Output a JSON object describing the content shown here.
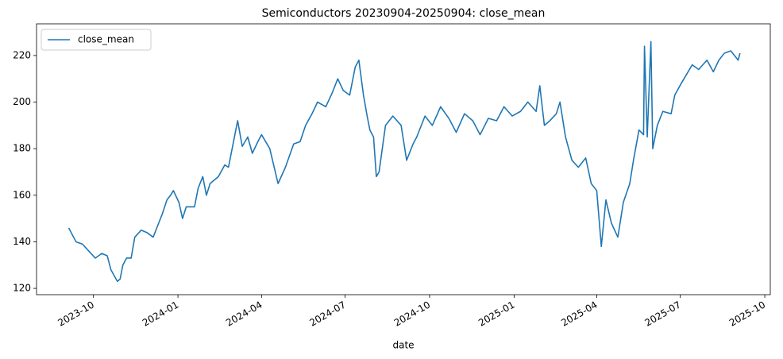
{
  "chart_data": {
    "type": "line",
    "title": "Semiconductors 20230904-20250904: close_mean",
    "xlabel": "date",
    "x": [
      19604,
      19612,
      19619,
      19626,
      19633,
      19640,
      19646,
      19650,
      19657,
      19660,
      19663,
      19667,
      19672,
      19676,
      19683,
      19689,
      19696,
      19702,
      19706,
      19711,
      19715,
      19718,
      19724,
      19728,
      19732,
      19741,
      19745,
      19750,
      19754,
      19758,
      19767,
      19774,
      19778,
      19784,
      19788,
      19793,
      19799,
      19804,
      19810,
      19814,
      19823,
      19832,
      19840,
      19849,
      19856,
      19862,
      19869,
      19875,
      19884,
      19891,
      19897,
      19903,
      19910,
      19916,
      19920,
      19925,
      19929,
      19932,
      19936,
      19939,
      19942,
      19949,
      19957,
      19966,
      19972,
      19979,
      19983,
      19992,
      20000,
      20009,
      20018,
      20026,
      20035,
      20044,
      20052,
      20061,
      20070,
      20078,
      20087,
      20096,
      20104,
      20113,
      20117,
      20122,
      20128,
      20135,
      20139,
      20145,
      20152,
      20159,
      20167,
      20173,
      20179,
      20184,
      20189,
      20195,
      20202,
      20208,
      20215,
      20219,
      20225,
      20230,
      20231,
      20234,
      20238,
      20240,
      20245,
      20251,
      20260,
      20264,
      20271,
      20277,
      20283,
      20290,
      20299,
      20306,
      20312,
      20318,
      20325,
      20333,
      20335
    ],
    "series": [
      {
        "name": "close_mean",
        "color": "#1f77b4",
        "values": [
          146,
          140,
          139,
          136,
          133,
          135,
          134,
          128,
          123,
          124,
          130,
          133,
          133,
          142,
          145,
          144,
          142,
          148,
          152,
          158,
          160,
          162,
          157,
          150,
          155,
          155,
          163,
          168,
          160,
          165,
          168,
          173,
          172,
          184,
          192,
          181,
          185,
          178,
          183,
          186,
          180,
          165,
          172,
          182,
          183,
          190,
          195,
          200,
          198,
          204,
          210,
          205,
          203,
          215,
          218,
          203,
          194,
          188,
          185,
          168,
          170,
          190,
          194,
          190,
          175,
          182,
          185,
          194,
          190,
          198,
          193,
          187,
          195,
          192,
          186,
          193,
          192,
          198,
          194,
          196,
          200,
          196,
          207,
          190,
          192,
          195,
          200,
          185,
          175,
          172,
          176,
          165,
          162,
          138,
          158,
          148,
          142,
          157,
          165,
          175,
          188,
          186,
          224,
          185,
          226,
          180,
          190,
          196,
          195,
          203,
          208,
          212,
          216,
          214,
          218,
          213,
          218,
          221,
          222,
          218,
          221
        ]
      }
    ],
    "xlim": [
      19569,
      20368
    ],
    "xticks": [
      {
        "value": 19631,
        "label": "2023-10"
      },
      {
        "value": 19723,
        "label": "2024-01"
      },
      {
        "value": 19814,
        "label": "2024-04"
      },
      {
        "value": 19905,
        "label": "2024-07"
      },
      {
        "value": 19997,
        "label": "2024-10"
      },
      {
        "value": 20089,
        "label": "2025-01"
      },
      {
        "value": 20179,
        "label": "2025-04"
      },
      {
        "value": 20270,
        "label": "2025-07"
      },
      {
        "value": 20362,
        "label": "2025-10"
      }
    ],
    "ylim": [
      117.3,
      233.6
    ],
    "yticks": [
      120,
      140,
      160,
      180,
      200,
      220
    ],
    "legend": "upper left"
  }
}
